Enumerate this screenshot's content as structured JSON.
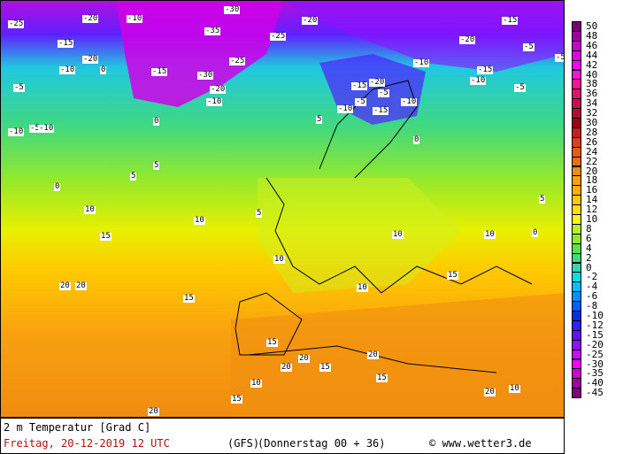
{
  "map": {
    "title": "2 m Temperatur [Grad C]",
    "valid_time": "Freitag, 20-12-2019  12 UTC",
    "model": "(GFS)",
    "run": "(Donnerstag 00 + 36)",
    "copyright": "© www.wetter3.de",
    "labels": [
      "-25",
      "-20",
      "-10",
      "-30",
      "-20",
      "-30",
      "-25",
      "-20",
      "-10",
      "-15",
      "-20",
      "-10",
      "-5",
      "-15",
      "-10",
      "-35",
      "-25",
      "-20",
      "-15",
      "-10",
      "-5",
      "0",
      "-5",
      "-10",
      "-15",
      "-20",
      "-10",
      "-15",
      "-5",
      "-10",
      "-5",
      "0",
      "5",
      "10",
      "5",
      "0",
      "5",
      "10",
      "15",
      "10",
      "5",
      "0",
      "10",
      "15",
      "20",
      "20",
      "15",
      "10",
      "15",
      "20",
      "15",
      "10",
      "20",
      "15",
      "20",
      "20",
      "10",
      "15",
      "20",
      "10",
      "5",
      "0",
      "-5",
      "-10",
      "-15",
      "-5"
    ],
    "colors": {
      "legend_text": "#000000",
      "date_text": "#b01010"
    }
  },
  "legend": {
    "values": [
      "50",
      "48",
      "46",
      "44",
      "42",
      "40",
      "38",
      "36",
      "34",
      "32",
      "30",
      "28",
      "26",
      "24",
      "22",
      "20",
      "18",
      "16",
      "14",
      "12",
      "10",
      "8",
      "6",
      "4",
      "2",
      "0",
      "-2",
      "-4",
      "-6",
      "-8",
      "-10",
      "-12",
      "-15",
      "-20",
      "-25",
      "-30",
      "-35",
      "-40",
      "-45"
    ],
    "colors": [
      "#7a007a",
      "#a000a0",
      "#c800c8",
      "#e000e0",
      "#ff00ff",
      "#ff10d8",
      "#ff1098",
      "#e01070",
      "#c81050",
      "#b01030",
      "#a00018",
      "#c02020",
      "#d84020",
      "#e06010",
      "#e87010",
      "#f08c10",
      "#f8a010",
      "#ffb000",
      "#ffc800",
      "#ffe000",
      "#f8f800",
      "#b8f020",
      "#90e830",
      "#60e050",
      "#40d880",
      "#30d8b0",
      "#00e0e0",
      "#00c0ff",
      "#0090ff",
      "#0060ff",
      "#0030e0",
      "#3020ff",
      "#6010ff",
      "#9010ff",
      "#c010ff",
      "#ff00ff",
      "#d000d0",
      "#a000a0",
      "#800080"
    ]
  }
}
